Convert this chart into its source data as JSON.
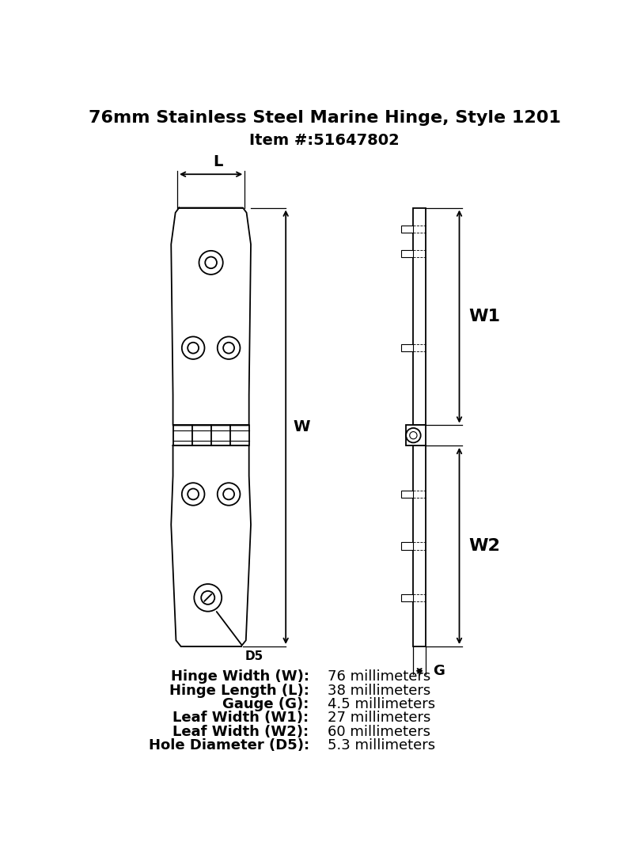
{
  "title": "76mm Stainless Steel Marine Hinge, Style 1201",
  "subtitle": "Item #:51647802",
  "specs": [
    {
      "label": "Hinge Width (W):",
      "value": "76 millimeters"
    },
    {
      "label": "Hinge Length (L):",
      "value": "38 millimeters"
    },
    {
      "label": "Gauge (G):",
      "value": "4.5 millimeters"
    },
    {
      "label": "Leaf Width (W1):",
      "value": "27 millimeters"
    },
    {
      "label": "Leaf Width (W2):",
      "value": "60 millimeters"
    },
    {
      "label": "Hole Diameter (D5):",
      "value": "5.3 millimeters"
    }
  ],
  "line_color": "#000000",
  "bg_color": "#ffffff",
  "title_fontsize": 16,
  "subtitle_fontsize": 14,
  "spec_label_fontsize": 13
}
